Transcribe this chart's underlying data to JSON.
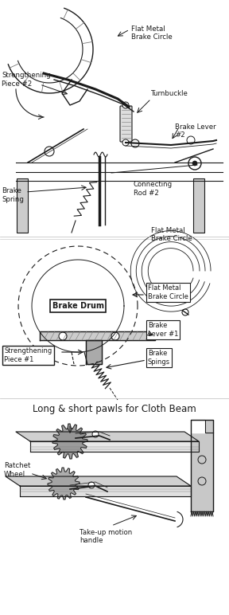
{
  "background_color": "#ffffff",
  "fig_width": 2.88,
  "fig_height": 7.72,
  "dpi": 100,
  "gray": "#1a1a1a",
  "lgray": "#777777",
  "section_title": "Long & short pawls for Cloth Beam",
  "labels": {
    "flat_metal_top": "Flat Metal\nBrake Circle",
    "turnbuckle": "Turnbuckle",
    "brake_lever2": "Brake Lever\n#2",
    "strengthening2": "Strengthening\nPiece #2",
    "connecting_rod2": "Connecting\nRod #2",
    "brake_spring": "Brake\nSpring",
    "brake_drum": "Brake Drum",
    "flat_metal_mid1": "Flat Metal\nBrake Circle",
    "flat_metal_mid2": "Flat Metal\nBrake Circle",
    "brake_lever1": "Brake\nLever #1",
    "strengthening1": "Strengthening\nPiece #1",
    "brake_spings": "Brake\nSpings",
    "ratchet_wheel": "Ratchet\nWheel",
    "takeup": "Take-up motion\nhandle"
  }
}
